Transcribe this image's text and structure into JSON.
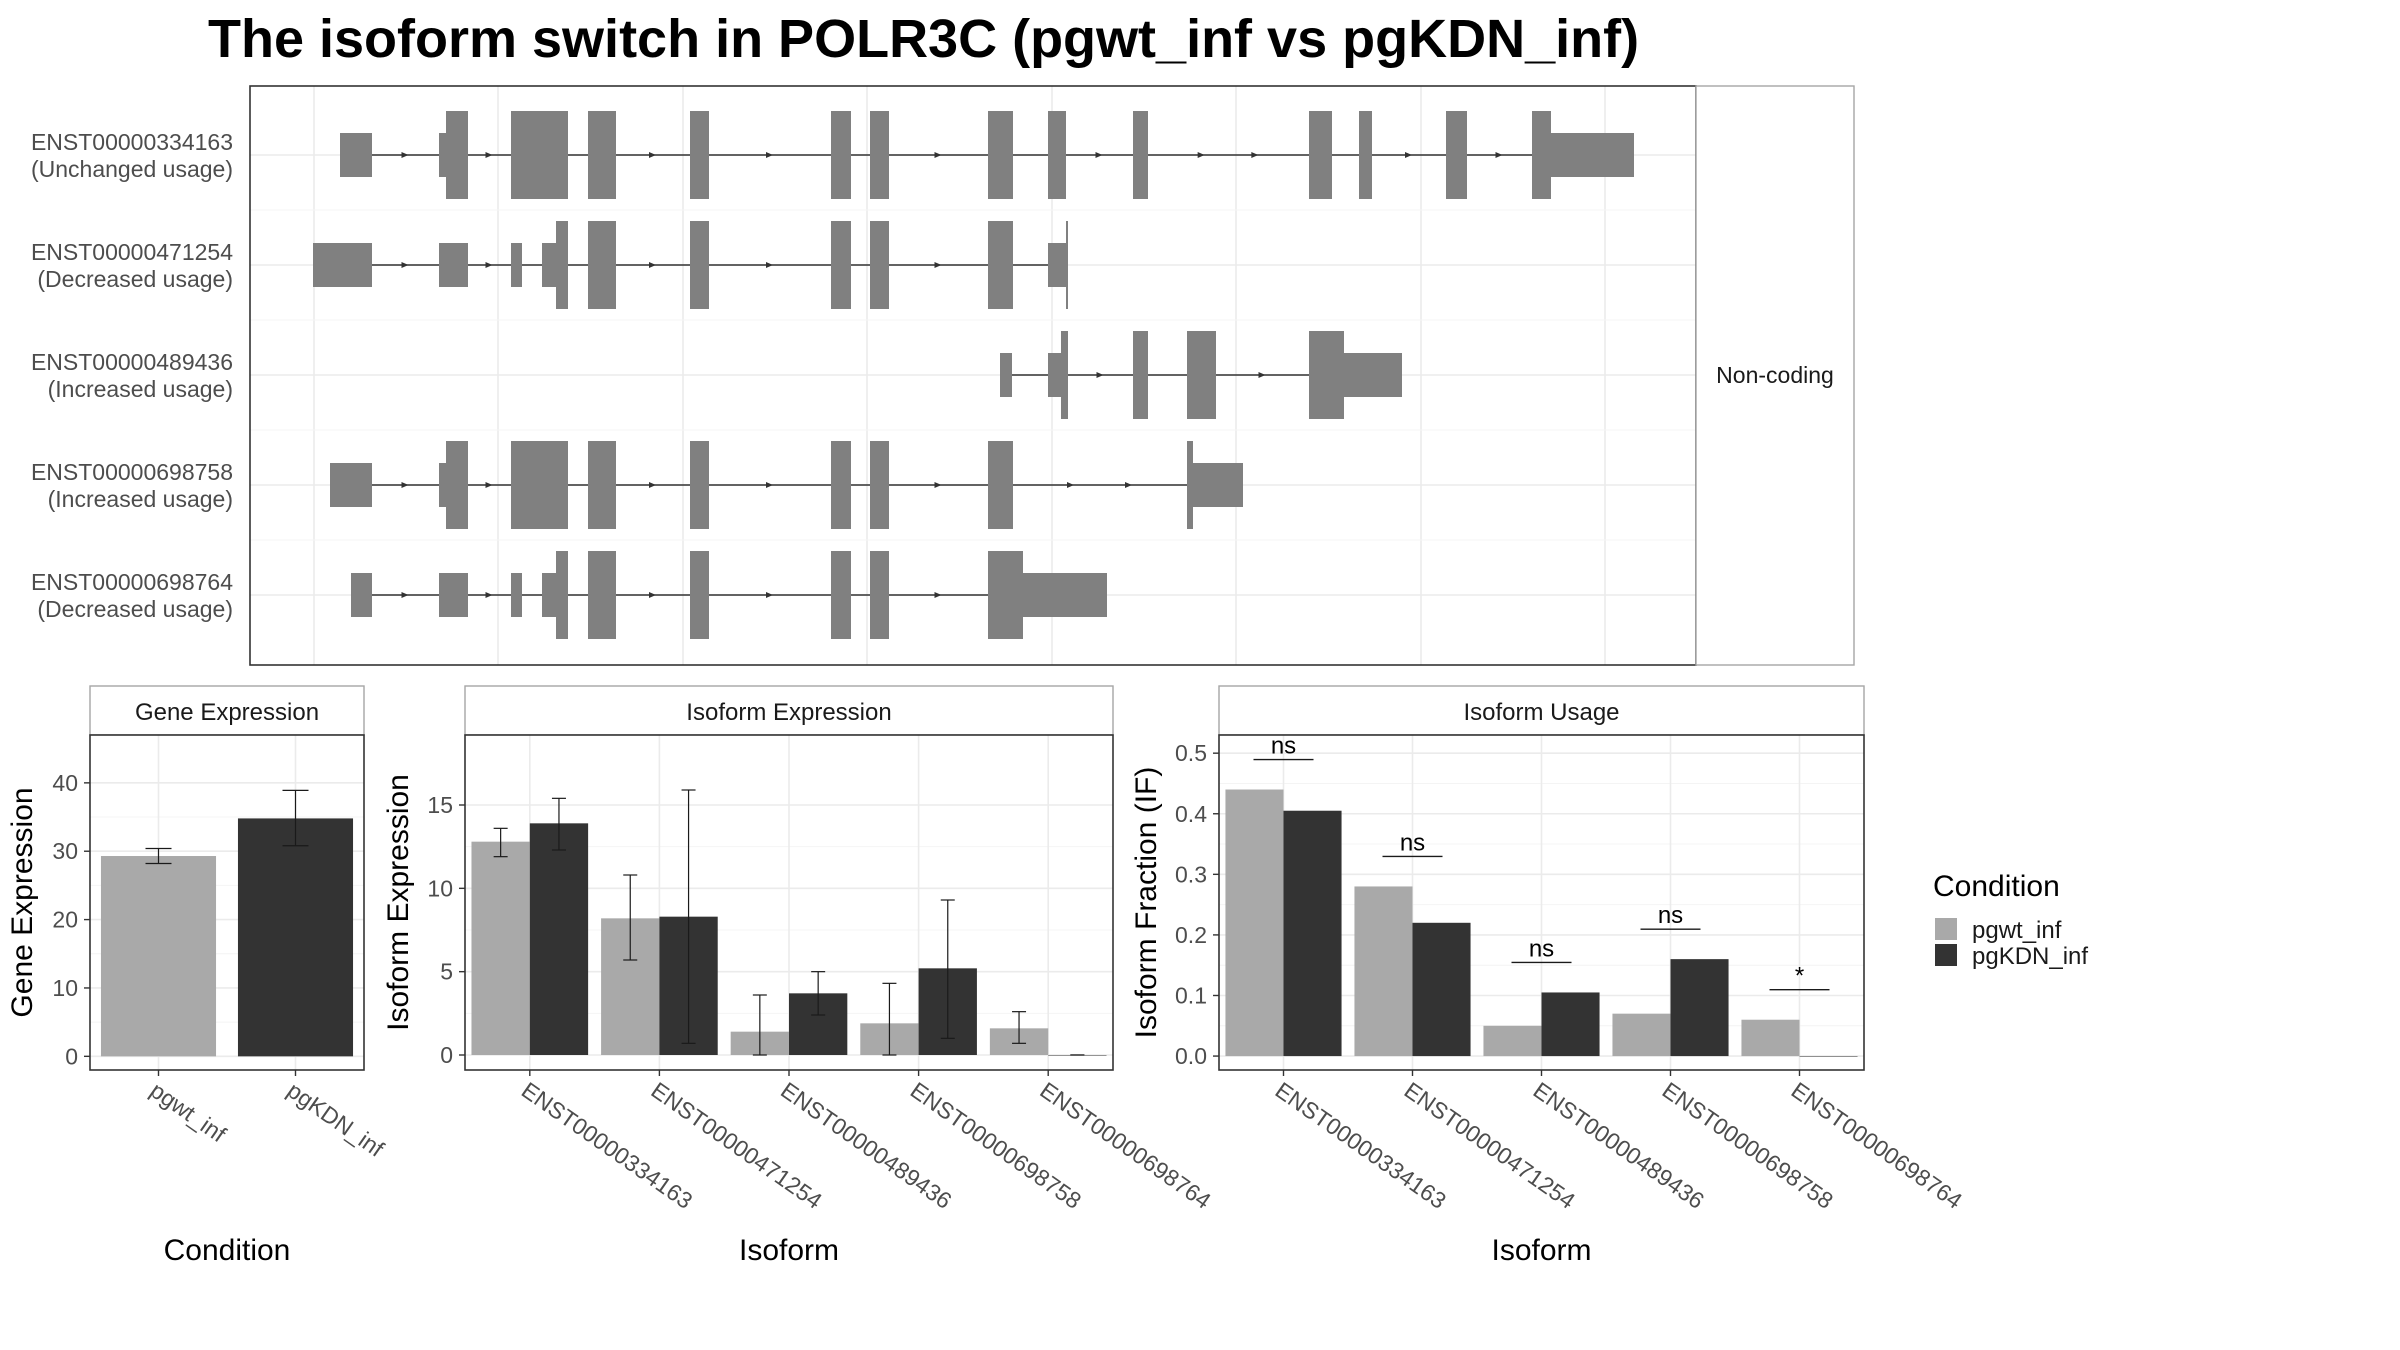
{
  "title": "The isoform switch in POLR3C (pgwt_inf vs pgKDN_inf)",
  "colors": {
    "pgwt_inf": "#a9a9a9",
    "pgKDN_inf": "#333333",
    "feature": "#808080",
    "grid": "#ebebeb",
    "frame": "#333333",
    "strip_border": "#a6a6a6"
  },
  "structure": {
    "strip_label": "Non-coding",
    "isoforms": [
      {
        "id": "ENST00000334163",
        "status": "(Unchanged usage)"
      },
      {
        "id": "ENST00000471254",
        "status": "(Decreased usage)"
      },
      {
        "id": "ENST00000489436",
        "status": "(Increased usage)"
      },
      {
        "id": "ENST00000698758",
        "status": "(Increased usage)"
      },
      {
        "id": "ENST00000698764",
        "status": "(Decreased usage)"
      }
    ]
  },
  "legend": {
    "title": "Condition",
    "items": [
      "pgwt_inf",
      "pgKDN_inf"
    ]
  },
  "chart_data": [
    {
      "type": "bar",
      "panel": "Gene Expression",
      "title": "Gene Expression",
      "xlabel": "Condition",
      "ylabel": "Gene Expression",
      "categories": [
        "pgwt_inf",
        "pgKDN_inf"
      ],
      "values": [
        29.3,
        34.8
      ],
      "error_low": [
        28.2,
        30.8
      ],
      "error_high": [
        30.4,
        38.9
      ],
      "yticks": [
        0,
        10,
        20,
        30,
        40
      ],
      "ylim": [
        -2,
        47
      ],
      "grid": true
    },
    {
      "type": "bar",
      "panel": "Isoform Expression",
      "title": "Isoform Expression",
      "xlabel": "Isoform",
      "ylabel": "Isoform Expression",
      "categories": [
        "ENST00000334163",
        "ENST00000471254",
        "ENST00000489436",
        "ENST00000698758",
        "ENST00000698764"
      ],
      "series": [
        {
          "name": "pgwt_inf",
          "values": [
            12.8,
            8.2,
            1.4,
            1.9,
            1.6
          ],
          "error_low": [
            11.9,
            5.7,
            0.0,
            0.0,
            0.7
          ],
          "error_high": [
            13.6,
            10.8,
            3.6,
            4.3,
            2.6
          ]
        },
        {
          "name": "pgKDN_inf",
          "values": [
            13.9,
            8.3,
            3.7,
            5.2,
            0.0
          ],
          "error_low": [
            12.3,
            0.7,
            2.4,
            1.0,
            0.0
          ],
          "error_high": [
            15.4,
            15.9,
            5.0,
            9.3,
            0.0
          ]
        }
      ],
      "yticks": [
        0,
        5,
        10,
        15
      ],
      "ylim": [
        -0.9,
        19.2
      ],
      "grid": true
    },
    {
      "type": "bar",
      "panel": "Isoform Usage",
      "title": "Isoform Usage",
      "xlabel": "Isoform",
      "ylabel": "Isoform Fraction (IF)",
      "categories": [
        "ENST00000334163",
        "ENST00000471254",
        "ENST00000489436",
        "ENST00000698758",
        "ENST00000698764"
      ],
      "series": [
        {
          "name": "pgwt_inf",
          "values": [
            0.44,
            0.28,
            0.05,
            0.07,
            0.06
          ]
        },
        {
          "name": "pgKDN_inf",
          "values": [
            0.405,
            0.22,
            0.105,
            0.16,
            0.0
          ]
        }
      ],
      "significance": [
        "ns",
        "ns",
        "ns",
        "ns",
        "*"
      ],
      "yticks": [
        0.0,
        0.1,
        0.2,
        0.3,
        0.4,
        0.5
      ],
      "yticklabels": [
        "0.0",
        "0.1",
        "0.2",
        "0.3",
        "0.4",
        "0.5"
      ],
      "ylim": [
        -0.023,
        0.53
      ],
      "grid": true
    }
  ]
}
